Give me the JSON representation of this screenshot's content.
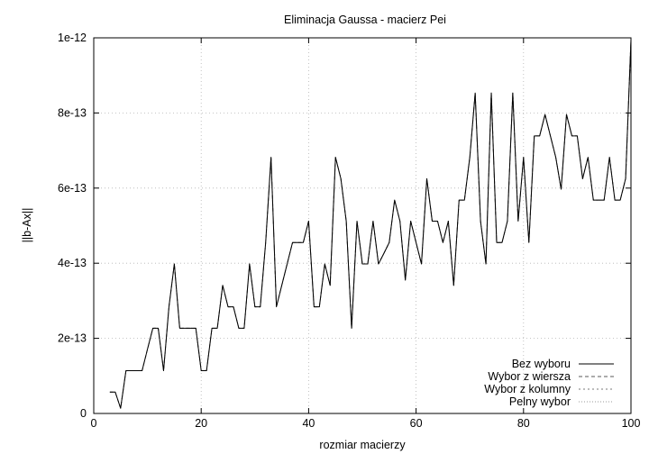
{
  "chart_data": {
    "type": "line",
    "title": "Eliminacja Gaussa - macierz Pei",
    "xlabel": "rozmiar macierzy",
    "ylabel": "||b-Ax||",
    "xlim": [
      0,
      100
    ],
    "ylim": [
      0,
      1e-12
    ],
    "x_ticks": [
      0,
      20,
      40,
      60,
      80,
      100
    ],
    "x_tick_labels": [
      "0",
      "20",
      "40",
      "60",
      "80",
      "100"
    ],
    "y_ticks": [
      0,
      2e-13,
      4e-13,
      6e-13,
      8e-13,
      1e-12
    ],
    "y_tick_labels": [
      "0",
      "2e-13",
      "4e-13",
      "6e-13",
      "8e-13",
      "1e-12"
    ],
    "grid": true,
    "legend_position": "bottom-right",
    "x": [
      3,
      4,
      5,
      6,
      7,
      8,
      9,
      10,
      11,
      12,
      13,
      14,
      15,
      16,
      17,
      18,
      19,
      20,
      21,
      22,
      23,
      24,
      25,
      26,
      27,
      28,
      29,
      30,
      31,
      32,
      33,
      34,
      35,
      36,
      37,
      38,
      39,
      40,
      41,
      42,
      43,
      44,
      45,
      46,
      47,
      48,
      49,
      50,
      51,
      52,
      53,
      54,
      55,
      56,
      57,
      58,
      59,
      60,
      61,
      62,
      63,
      64,
      65,
      66,
      67,
      68,
      69,
      70,
      71,
      72,
      73,
      74,
      75,
      76,
      77,
      78,
      79,
      80,
      81,
      82,
      83,
      84,
      85,
      86,
      87,
      88,
      89,
      90,
      91,
      92,
      93,
      94,
      95,
      96,
      97,
      98,
      99,
      100
    ],
    "series": [
      {
        "name": "Bez wyboru",
        "values": [
          5.7e-14,
          5.7e-14,
          1.4e-14,
          1.14e-13,
          1.14e-13,
          1.14e-13,
          1.14e-13,
          1.71e-13,
          2.27e-13,
          2.27e-13,
          1.14e-13,
          2.84e-13,
          3.98e-13,
          2.27e-13,
          2.27e-13,
          2.27e-13,
          2.27e-13,
          1.14e-13,
          1.14e-13,
          2.27e-13,
          2.27e-13,
          3.41e-13,
          2.84e-13,
          2.84e-13,
          2.27e-13,
          2.27e-13,
          3.98e-13,
          2.84e-13,
          2.84e-13,
          4.55e-13,
          6.82e-13,
          2.84e-13,
          3.41e-13,
          3.98e-13,
          4.55e-13,
          4.55e-13,
          4.55e-13,
          5.12e-13,
          2.84e-13,
          2.84e-13,
          3.98e-13,
          3.41e-13,
          6.82e-13,
          6.25e-13,
          5.12e-13,
          2.27e-13,
          5.12e-13,
          3.98e-13,
          3.98e-13,
          5.12e-13,
          3.98e-13,
          4.26e-13,
          4.55e-13,
          5.68e-13,
          5.12e-13,
          3.55e-13,
          5.12e-13,
          4.55e-13,
          3.98e-13,
          6.25e-13,
          5.12e-13,
          5.12e-13,
          4.55e-13,
          5.12e-13,
          3.41e-13,
          5.68e-13,
          5.68e-13,
          6.82e-13,
          8.53e-13,
          5.12e-13,
          3.98e-13,
          8.53e-13,
          4.55e-13,
          4.55e-13,
          5.12e-13,
          8.53e-13,
          5.12e-13,
          6.82e-13,
          4.55e-13,
          7.39e-13,
          7.39e-13,
          7.96e-13,
          7.39e-13,
          6.82e-13,
          5.97e-13,
          7.96e-13,
          7.39e-13,
          7.39e-13,
          6.25e-13,
          6.82e-13,
          5.68e-13,
          5.68e-13,
          5.68e-13,
          6.82e-13,
          5.68e-13,
          5.68e-13,
          6.25e-13,
          9.95e-13
        ]
      },
      {
        "name": "Wybor z wiersza",
        "values": [
          5.7e-14,
          5.7e-14,
          1.4e-14,
          1.14e-13,
          1.14e-13,
          1.14e-13,
          1.14e-13,
          1.71e-13,
          2.27e-13,
          2.27e-13,
          1.14e-13,
          2.84e-13,
          3.98e-13,
          2.27e-13,
          2.27e-13,
          2.27e-13,
          2.27e-13,
          1.14e-13,
          1.14e-13,
          2.27e-13,
          2.27e-13,
          3.41e-13,
          2.84e-13,
          2.84e-13,
          2.27e-13,
          2.27e-13,
          3.98e-13,
          2.84e-13,
          2.84e-13,
          4.55e-13,
          6.82e-13,
          2.84e-13,
          3.41e-13,
          3.98e-13,
          4.55e-13,
          4.55e-13,
          4.55e-13,
          5.12e-13,
          2.84e-13,
          2.84e-13,
          3.98e-13,
          3.41e-13,
          6.82e-13,
          6.25e-13,
          5.12e-13,
          2.27e-13,
          5.12e-13,
          3.98e-13,
          3.98e-13,
          5.12e-13,
          3.98e-13,
          4.26e-13,
          4.55e-13,
          5.68e-13,
          5.12e-13,
          3.55e-13,
          5.12e-13,
          4.55e-13,
          3.98e-13,
          6.25e-13,
          5.12e-13,
          5.12e-13,
          4.55e-13,
          5.12e-13,
          3.41e-13,
          5.68e-13,
          5.68e-13,
          6.82e-13,
          8.53e-13,
          5.12e-13,
          3.98e-13,
          8.53e-13,
          4.55e-13,
          4.55e-13,
          5.12e-13,
          8.53e-13,
          5.12e-13,
          6.82e-13,
          4.55e-13,
          7.39e-13,
          7.39e-13,
          7.96e-13,
          7.39e-13,
          6.82e-13,
          5.97e-13,
          7.96e-13,
          7.39e-13,
          7.39e-13,
          6.25e-13,
          6.82e-13,
          5.68e-13,
          5.68e-13,
          5.68e-13,
          6.82e-13,
          5.68e-13,
          5.68e-13,
          6.25e-13,
          9.95e-13
        ]
      },
      {
        "name": "Wybor z kolumny",
        "values": [
          5.7e-14,
          5.7e-14,
          1.4e-14,
          1.14e-13,
          1.14e-13,
          1.14e-13,
          1.14e-13,
          1.71e-13,
          2.27e-13,
          2.27e-13,
          1.14e-13,
          2.84e-13,
          3.98e-13,
          2.27e-13,
          2.27e-13,
          2.27e-13,
          2.27e-13,
          1.14e-13,
          1.14e-13,
          2.27e-13,
          2.27e-13,
          3.41e-13,
          2.84e-13,
          2.84e-13,
          2.27e-13,
          2.27e-13,
          3.98e-13,
          2.84e-13,
          2.84e-13,
          4.55e-13,
          6.82e-13,
          2.84e-13,
          3.41e-13,
          3.98e-13,
          4.55e-13,
          4.55e-13,
          4.55e-13,
          5.12e-13,
          2.84e-13,
          2.84e-13,
          3.98e-13,
          3.41e-13,
          6.82e-13,
          6.25e-13,
          5.12e-13,
          2.27e-13,
          5.12e-13,
          3.98e-13,
          3.98e-13,
          5.12e-13,
          3.98e-13,
          4.26e-13,
          4.55e-13,
          5.68e-13,
          5.12e-13,
          3.55e-13,
          5.12e-13,
          4.55e-13,
          3.98e-13,
          6.25e-13,
          5.12e-13,
          5.12e-13,
          4.55e-13,
          5.12e-13,
          3.41e-13,
          5.68e-13,
          5.68e-13,
          6.82e-13,
          8.53e-13,
          5.12e-13,
          3.98e-13,
          8.53e-13,
          4.55e-13,
          4.55e-13,
          5.12e-13,
          8.53e-13,
          5.12e-13,
          6.82e-13,
          4.55e-13,
          7.39e-13,
          7.39e-13,
          7.96e-13,
          7.39e-13,
          6.82e-13,
          5.97e-13,
          7.96e-13,
          7.39e-13,
          7.39e-13,
          6.25e-13,
          6.82e-13,
          5.68e-13,
          5.68e-13,
          5.68e-13,
          6.82e-13,
          5.68e-13,
          5.68e-13,
          6.25e-13,
          9.95e-13
        ]
      },
      {
        "name": "Pelny wybor",
        "values": [
          5.7e-14,
          5.7e-14,
          1.4e-14,
          1.14e-13,
          1.14e-13,
          1.14e-13,
          1.14e-13,
          1.71e-13,
          2.27e-13,
          2.27e-13,
          1.14e-13,
          2.84e-13,
          3.98e-13,
          2.27e-13,
          2.27e-13,
          2.27e-13,
          2.27e-13,
          1.14e-13,
          1.14e-13,
          2.27e-13,
          2.27e-13,
          3.41e-13,
          2.84e-13,
          2.84e-13,
          2.27e-13,
          2.27e-13,
          3.98e-13,
          2.84e-13,
          2.84e-13,
          4.55e-13,
          6.82e-13,
          2.84e-13,
          3.41e-13,
          3.98e-13,
          4.55e-13,
          4.55e-13,
          4.55e-13,
          5.12e-13,
          2.84e-13,
          2.84e-13,
          3.98e-13,
          3.41e-13,
          6.82e-13,
          6.25e-13,
          5.12e-13,
          2.27e-13,
          5.12e-13,
          3.98e-13,
          3.98e-13,
          5.12e-13,
          3.98e-13,
          4.26e-13,
          4.55e-13,
          5.68e-13,
          5.12e-13,
          3.55e-13,
          5.12e-13,
          4.55e-13,
          3.98e-13,
          6.25e-13,
          5.12e-13,
          5.12e-13,
          4.55e-13,
          5.12e-13,
          3.41e-13,
          5.68e-13,
          5.68e-13,
          6.82e-13,
          8.53e-13,
          5.12e-13,
          3.98e-13,
          8.53e-13,
          4.55e-13,
          4.55e-13,
          5.12e-13,
          8.53e-13,
          5.12e-13,
          6.82e-13,
          4.55e-13,
          7.39e-13,
          7.39e-13,
          7.96e-13,
          7.39e-13,
          6.82e-13,
          5.97e-13,
          7.96e-13,
          7.39e-13,
          7.39e-13,
          6.25e-13,
          6.82e-13,
          5.68e-13,
          5.68e-13,
          5.68e-13,
          6.82e-13,
          5.68e-13,
          5.68e-13,
          6.25e-13,
          9.95e-13
        ]
      }
    ],
    "series_colors": [
      "#000000",
      "#5a5a5a",
      "#7a7a7a",
      "#9a9a9a"
    ],
    "series_line_styles": [
      "solid",
      "dashed",
      "short-dashed",
      "dotted"
    ]
  }
}
